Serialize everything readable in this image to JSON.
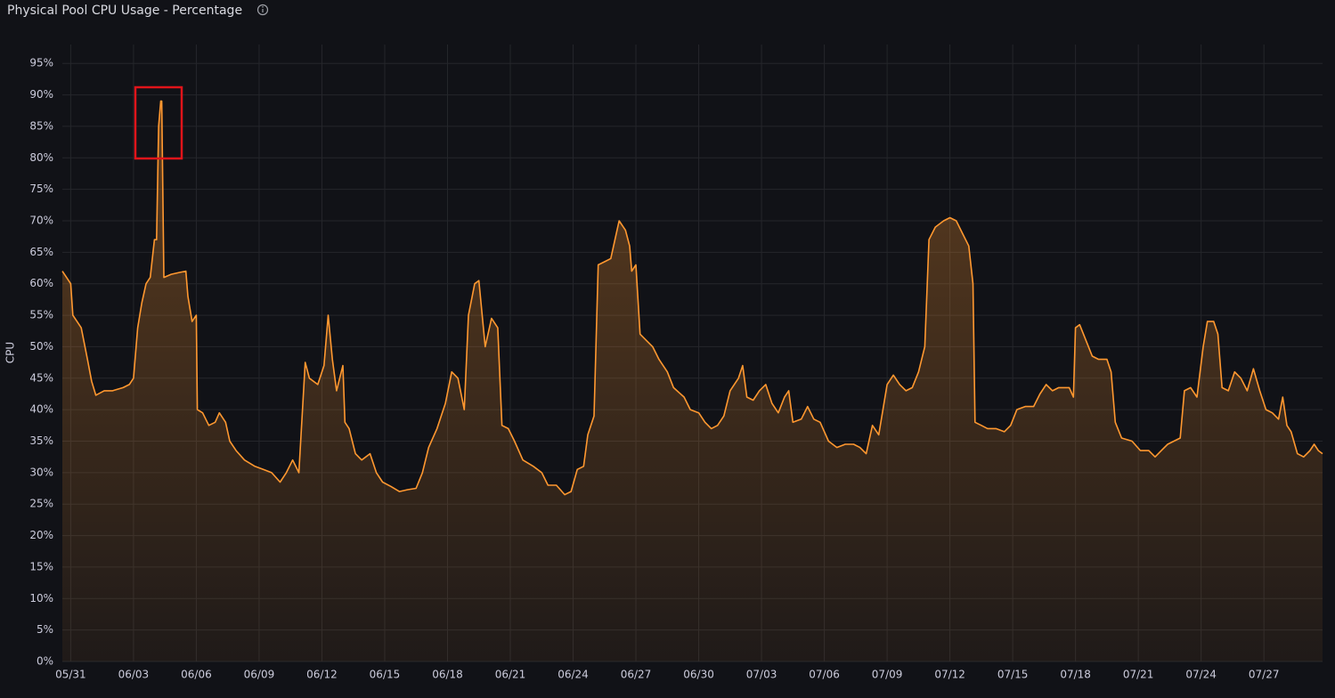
{
  "chart_data": {
    "type": "area",
    "title": "Physical Pool CPU Usage - Percentage",
    "y_label": "CPU",
    "color": "#ff9830",
    "grid": true,
    "xlim": [
      -0.4,
      59.8
    ],
    "xticks": [
      {
        "value": 0,
        "label": "05/31"
      },
      {
        "value": 3,
        "label": "06/03"
      },
      {
        "value": 6,
        "label": "06/06"
      },
      {
        "value": 9,
        "label": "06/09"
      },
      {
        "value": 12,
        "label": "06/12"
      },
      {
        "value": 15,
        "label": "06/15"
      },
      {
        "value": 18,
        "label": "06/18"
      },
      {
        "value": 21,
        "label": "06/21"
      },
      {
        "value": 24,
        "label": "06/24"
      },
      {
        "value": 27,
        "label": "06/27"
      },
      {
        "value": 30,
        "label": "06/30"
      },
      {
        "value": 33,
        "label": "07/03"
      },
      {
        "value": 36,
        "label": "07/06"
      },
      {
        "value": 39,
        "label": "07/09"
      },
      {
        "value": 42,
        "label": "07/12"
      },
      {
        "value": 45,
        "label": "07/15"
      },
      {
        "value": 48,
        "label": "07/18"
      },
      {
        "value": 51,
        "label": "07/21"
      },
      {
        "value": 54,
        "label": "07/24"
      },
      {
        "value": 57,
        "label": "07/27"
      }
    ],
    "ylim": [
      0,
      98
    ],
    "yticks": [
      {
        "value": 0,
        "label": "0%"
      },
      {
        "value": 5,
        "label": "5%"
      },
      {
        "value": 10,
        "label": "10%"
      },
      {
        "value": 15,
        "label": "15%"
      },
      {
        "value": 20,
        "label": "20%"
      },
      {
        "value": 25,
        "label": "25%"
      },
      {
        "value": 30,
        "label": "30%"
      },
      {
        "value": 35,
        "label": "35%"
      },
      {
        "value": 40,
        "label": "40%"
      },
      {
        "value": 45,
        "label": "45%"
      },
      {
        "value": 50,
        "label": "50%"
      },
      {
        "value": 55,
        "label": "55%"
      },
      {
        "value": 60,
        "label": "60%"
      },
      {
        "value": 65,
        "label": "65%"
      },
      {
        "value": 70,
        "label": "70%"
      },
      {
        "value": 75,
        "label": "75%"
      },
      {
        "value": 80,
        "label": "80%"
      },
      {
        "value": 85,
        "label": "85%"
      },
      {
        "value": 90,
        "label": "90%"
      },
      {
        "value": 95,
        "label": "95%"
      }
    ],
    "x": [
      -0.4,
      -0.2,
      0,
      0.1,
      0.3,
      0.5,
      0.8,
      1.0,
      1.2,
      1.6,
      2.0,
      2.5,
      2.8,
      3.0,
      3.2,
      3.4,
      3.6,
      3.8,
      4.0,
      4.1,
      4.2,
      4.3,
      4.35,
      4.45,
      4.8,
      5.2,
      5.5,
      5.6,
      5.8,
      6.0,
      6.05,
      6.3,
      6.6,
      6.9,
      7.1,
      7.4,
      7.6,
      7.9,
      8.3,
      8.8,
      9.2,
      9.6,
      10.0,
      10.3,
      10.6,
      10.9,
      11.2,
      11.4,
      11.8,
      12.1,
      12.3,
      12.5,
      12.7,
      13.0,
      13.1,
      13.3,
      13.6,
      13.9,
      14.3,
      14.6,
      14.9,
      15.3,
      15.7,
      16.1,
      16.5,
      16.8,
      17.1,
      17.5,
      17.9,
      18.2,
      18.5,
      18.8,
      19.0,
      19.3,
      19.5,
      19.8,
      20.1,
      20.4,
      20.6,
      20.9,
      21.2,
      21.6,
      22.1,
      22.5,
      22.8,
      23.2,
      23.6,
      23.9,
      24.2,
      24.5,
      24.7,
      25.0,
      25.2,
      25.5,
      25.8,
      26.0,
      26.2,
      26.5,
      26.7,
      26.8,
      27.0,
      27.2,
      27.5,
      27.8,
      28.1,
      28.5,
      28.8,
      29.3,
      29.6,
      30.0,
      30.3,
      30.6,
      30.9,
      31.2,
      31.5,
      31.9,
      32.1,
      32.3,
      32.6,
      32.9,
      33.2,
      33.5,
      33.8,
      34.1,
      34.3,
      34.5,
      34.9,
      35.2,
      35.5,
      35.8,
      36.2,
      36.6,
      37.0,
      37.4,
      37.7,
      38.0,
      38.3,
      38.6,
      39.0,
      39.3,
      39.6,
      39.9,
      40.2,
      40.5,
      40.8,
      41.0,
      41.3,
      41.7,
      42.0,
      42.3,
      42.6,
      42.9,
      43.1,
      43.2,
      43.5,
      43.8,
      44.2,
      44.6,
      44.9,
      45.2,
      45.6,
      46.0,
      46.3,
      46.6,
      46.9,
      47.2,
      47.5,
      47.7,
      47.9,
      48.0,
      48.2,
      48.5,
      48.8,
      49.1,
      49.5,
      49.7,
      49.9,
      50.2,
      50.7,
      51.1,
      51.5,
      51.8,
      52.1,
      52.4,
      52.7,
      53.0,
      53.2,
      53.5,
      53.8,
      54.1,
      54.3,
      54.6,
      54.8,
      55.0,
      55.3,
      55.6,
      55.9,
      56.2,
      56.5,
      56.8,
      57.1,
      57.4,
      57.7,
      57.9,
      58.1,
      58.3,
      58.6,
      58.9,
      59.2,
      59.4,
      59.6,
      59.8
    ],
    "values": [
      62,
      61,
      60,
      55,
      54,
      53,
      48,
      44.5,
      42.3,
      43,
      43,
      43.5,
      44,
      45,
      53,
      57,
      60,
      61,
      67,
      67,
      85,
      89,
      89,
      61,
      61.5,
      61.8,
      62,
      58,
      54,
      55,
      40,
      39.5,
      37.5,
      38,
      39.5,
      38,
      35,
      33.5,
      32,
      31,
      30.5,
      30,
      28.5,
      30,
      32,
      30,
      47.5,
      45,
      44,
      47,
      55,
      48,
      43,
      47,
      38,
      37,
      33,
      32,
      33,
      30,
      28.5,
      27.8,
      27,
      27.3,
      27.5,
      30,
      34,
      37,
      41,
      46,
      45,
      40,
      55,
      60,
      60.5,
      50,
      54.5,
      53,
      37.5,
      37,
      35,
      32,
      31,
      30,
      28,
      28,
      26.5,
      27,
      30.5,
      31,
      36,
      39,
      63,
      63.5,
      64,
      67,
      70,
      68.5,
      66,
      62,
      63,
      52,
      51,
      50,
      48,
      46,
      43.5,
      42,
      40,
      39.5,
      38,
      37,
      37.5,
      39,
      43,
      45,
      47,
      42,
      41.5,
      43,
      44,
      41,
      39.5,
      42,
      43,
      38,
      38.5,
      40.5,
      38.5,
      38,
      35,
      34,
      34.5,
      34.5,
      34,
      33,
      37.5,
      36,
      44,
      45.5,
      44,
      43,
      43.5,
      46,
      50,
      67,
      69,
      70,
      70.5,
      70,
      68,
      66,
      60,
      38,
      37.5,
      37,
      37,
      36.5,
      37.5,
      40,
      40.5,
      40.5,
      42.5,
      44,
      43,
      43.5,
      43.5,
      43.5,
      42,
      53,
      53.5,
      51,
      48.5,
      48,
      48,
      46,
      38,
      35.5,
      35,
      33.5,
      33.5,
      32.5,
      33.5,
      34.5,
      35,
      35.5,
      43,
      43.5,
      42,
      50,
      54,
      54,
      52,
      43.5,
      43,
      46,
      45,
      43,
      46.5,
      43,
      40,
      39.5,
      38.5,
      42,
      37.5,
      36.5,
      33,
      32.5,
      33.5,
      34.5,
      33.5,
      33
    ]
  }
}
